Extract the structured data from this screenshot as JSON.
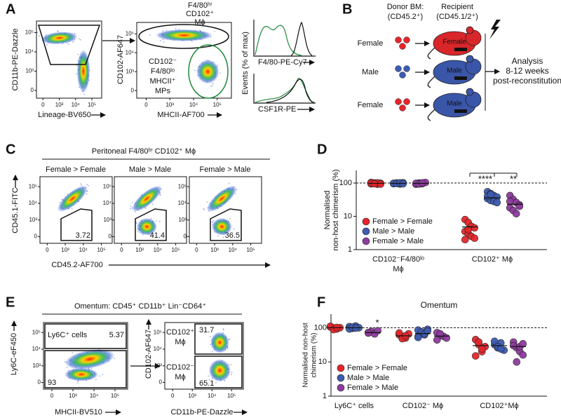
{
  "panel_labels": [
    "A",
    "B",
    "C",
    "D",
    "E",
    "F"
  ],
  "flow_ticks": [
    "0",
    "10³",
    "10⁴",
    "10⁵"
  ],
  "panel_a": {
    "plot1": {
      "y_label": "CD11b-PE-Dazzle",
      "x_label": "Lineage-BV650"
    },
    "plot2": {
      "gate_title": [
        "F4/80ʰⁱ",
        "CD102⁺",
        "Mϕ"
      ],
      "y_label": "CD102-AF647",
      "x_label": "MHCII-AF700",
      "gate_label": [
        "CD102⁻",
        "F4/80ˡᵒ",
        "MHCII⁺",
        "MPs"
      ]
    },
    "histograms": {
      "y_label": "Events (% of max)",
      "x_labels": [
        "F4/80-PE-Cy7",
        "CSF1R-PE"
      ]
    }
  },
  "panel_b": {
    "donor": [
      "Donor BM:",
      "(CD45.2⁺)"
    ],
    "recipient": [
      "Recipient",
      "(CD45.1/2⁺)"
    ],
    "rows": [
      {
        "donor": "Female",
        "recipient": "Female"
      },
      {
        "donor": "Male",
        "recipient": "Male"
      },
      {
        "donor": "Female",
        "recipient": "Male"
      }
    ],
    "analysis": [
      "Analysis",
      "8-12 weeks",
      "post-reconstitution"
    ]
  },
  "panel_c": {
    "header": "Peritoneal F4/80ʰⁱ CD102⁺ Mϕ",
    "y_label": "CD45.1-FITC",
    "x_label": "CD45.2-AF700",
    "plots": [
      {
        "title": "Female > Female",
        "gate": "3.72"
      },
      {
        "title": "Male > Male",
        "gate": "41.4"
      },
      {
        "title": "Female > Male",
        "gate": "36.5"
      }
    ]
  },
  "panel_e": {
    "header": "Omentum: CD45⁺ CD11b⁺ Lin⁻CD64⁺",
    "plot1": {
      "y_label": "Ly6C-eF450",
      "x_label": "MHCII-BV510",
      "gates": [
        {
          "label": "Ly6C⁺ cells",
          "value": "5.37"
        },
        {
          "value": "93"
        }
      ]
    },
    "plot2": {
      "y_label": "CD102-AF647",
      "x_label": "CD11b-PE-Dazzle",
      "gates": [
        {
          "label": [
            "CD102⁺",
            "Mϕ"
          ],
          "value": "31.7"
        },
        {
          "label": [
            "CD102⁻",
            "Mϕ"
          ],
          "value": "65.1"
        }
      ]
    }
  },
  "chart_data": [
    {
      "type": "dot",
      "y_label": [
        "Normalised",
        "non-host chimerism (%)"
      ],
      "categories": [
        [
          "CD102⁻F4/80ˡᵒ",
          "Mϕ"
        ],
        [
          "CD102⁺ Mϕ"
        ]
      ],
      "series": [
        {
          "name": "Female > Female",
          "color": "#e3262b",
          "values": [
            [
              95,
              100,
              92,
              98,
              104,
              97,
              101,
              93,
              99,
              96
            ],
            [
              8,
              6.5,
              5,
              4.5,
              3.5,
              3,
              2.5,
              2.2,
              2,
              4
            ]
          ],
          "means": [
            98,
            4.8
          ]
        },
        {
          "name": "Male > Male",
          "color": "#3d5bb0",
          "values": [
            [
              96,
              100,
              94,
              102,
              98,
              97,
              101,
              95
            ],
            [
              55,
              48,
              42,
              38,
              34,
              30,
              28,
              26,
              40,
              45
            ]
          ],
          "means": [
            98,
            36
          ]
        },
        {
          "name": "Female > Male",
          "color": "#8e3b9e",
          "values": [
            [
              92,
              100,
              96,
              104,
              98,
              94,
              101
            ],
            [
              42,
              32,
              26,
              22,
              18,
              15,
              12,
              20,
              28
            ]
          ],
          "means": [
            98,
            23
          ]
        }
      ],
      "ylim": [
        1,
        240
      ],
      "yticks": [
        1,
        10,
        100
      ],
      "log_scale": true,
      "reference_line": 100,
      "legend": "lower left",
      "annotations": [
        {
          "text": "****"
        },
        {
          "text": "**"
        }
      ]
    },
    {
      "type": "dot",
      "title": "Omentum",
      "y_label": [
        "Normalised non-host",
        "chimerism (%)"
      ],
      "categories": [
        [
          "Ly6C⁺ cells"
        ],
        [
          "CD102⁻ Mϕ"
        ],
        [
          "CD102⁺Mϕ"
        ]
      ],
      "series": [
        {
          "name": "Female > Female",
          "color": "#e3262b",
          "values": [
            [
              105,
              98,
              92,
              100,
              110,
              88,
              102
            ],
            [
              62,
              55,
              50,
              66,
              70,
              48,
              58
            ],
            [
              45,
              32,
              20,
              28,
              15,
              38,
              24
            ]
          ],
          "means": [
            100,
            58,
            30
          ]
        },
        {
          "name": "Male > Male",
          "color": "#3d5bb0",
          "values": [
            [
              108,
              96,
              112,
              100,
              92,
              104,
              98
            ],
            [
              85,
              72,
              62,
              90,
              55,
              76,
              66,
              80,
              52
            ],
            [
              32,
              26,
              36,
              22,
              40,
              28,
              24
            ]
          ],
          "means": [
            100,
            68,
            30
          ]
        },
        {
          "name": "Female > Male",
          "color": "#8e3b9e",
          "values": [
            [
              72,
              78,
              66,
              82,
              70
            ],
            [
              72,
              62,
              56,
              50,
              44,
              66
            ],
            [
              38,
              26,
              20,
              16,
              30,
              10,
              28,
              34
            ]
          ],
          "means": [
            72,
            57,
            28
          ]
        }
      ],
      "ylim": [
        1,
        250
      ],
      "yticks": [
        1,
        10,
        100
      ],
      "log_scale": true,
      "reference_line": 100,
      "legend": "lower left",
      "annotations": [
        {
          "text": "*"
        }
      ]
    }
  ]
}
